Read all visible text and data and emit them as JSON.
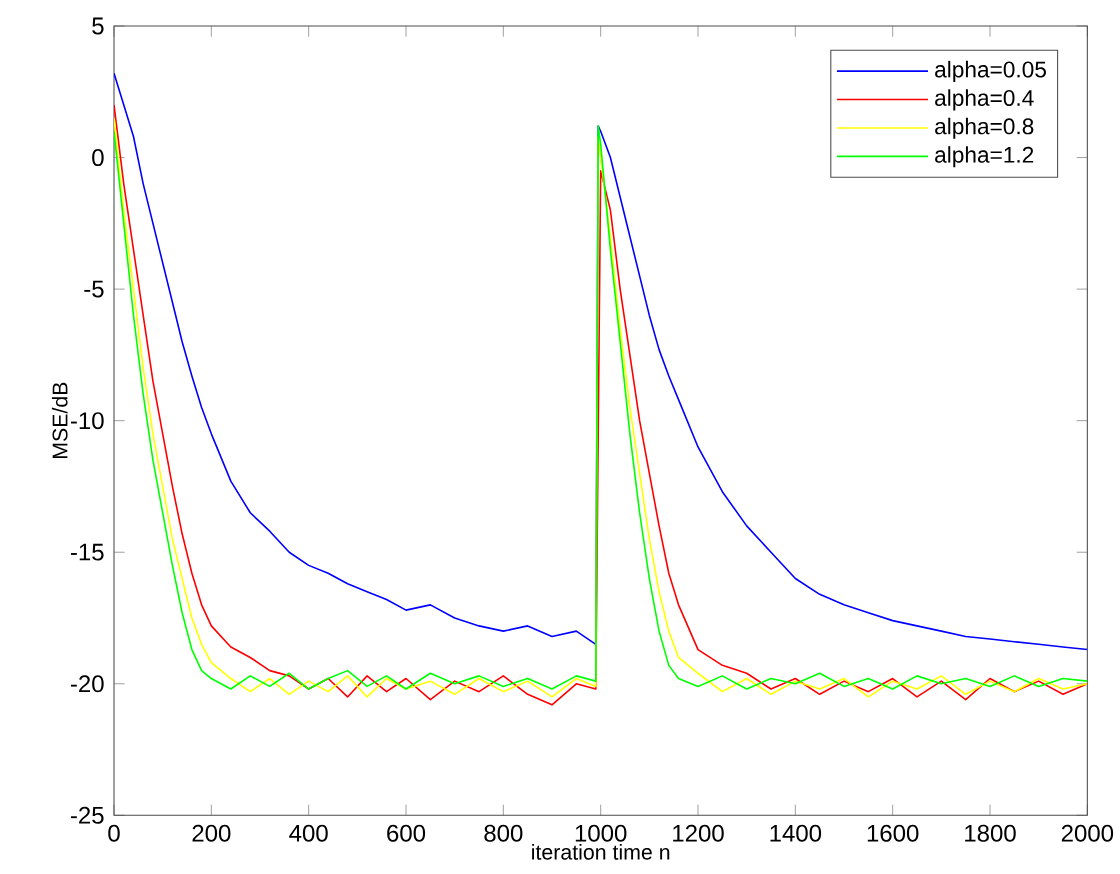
{
  "chart_data": {
    "type": "line",
    "xlabel": "iteration time n",
    "ylabel": "MSE/dB",
    "xlim": [
      0,
      2000
    ],
    "ylim": [
      -25,
      5
    ],
    "xticks": [
      0,
      200,
      400,
      600,
      800,
      1000,
      1200,
      1400,
      1600,
      1800,
      2000
    ],
    "yticks": [
      -25,
      -20,
      -15,
      -10,
      -5,
      0,
      5
    ],
    "grid": false,
    "legend": "top right",
    "x": [
      0,
      20,
      40,
      60,
      80,
      100,
      120,
      140,
      160,
      180,
      200,
      240,
      280,
      320,
      360,
      400,
      440,
      480,
      520,
      560,
      600,
      650,
      700,
      750,
      800,
      850,
      900,
      950,
      990,
      995,
      1000,
      1020,
      1040,
      1060,
      1080,
      1100,
      1120,
      1140,
      1160,
      1200,
      1250,
      1300,
      1350,
      1400,
      1450,
      1500,
      1550,
      1600,
      1650,
      1700,
      1750,
      1800,
      1850,
      1900,
      1950,
      2000
    ],
    "series": [
      {
        "name": "alpha=0.05",
        "color": "#0000ff",
        "values": [
          3.2,
          2,
          0.8,
          -1,
          -2.5,
          -4,
          -5.5,
          -7,
          -8.3,
          -9.5,
          -10.5,
          -12.3,
          -13.5,
          -14.2,
          -15,
          -15.5,
          -15.8,
          -16.2,
          -16.5,
          -16.8,
          -17.2,
          -17,
          -17.5,
          -17.8,
          -18,
          -17.8,
          -18.2,
          -18,
          -18.5,
          1.2,
          1.0,
          0,
          -1.5,
          -3,
          -4.5,
          -6,
          -7.3,
          -8.3,
          -9.2,
          -11,
          -12.7,
          -14,
          -15,
          -16,
          -16.6,
          -17,
          -17.3,
          -17.6,
          -17.8,
          -18,
          -18.2,
          -18.3,
          -18.4,
          -18.5,
          -18.6,
          -18.7
        ]
      },
      {
        "name": "alpha=0.4",
        "color": "#ff0000",
        "values": [
          2,
          -1,
          -3.5,
          -6,
          -8.5,
          -10.5,
          -12.5,
          -14.3,
          -15.8,
          -17,
          -17.8,
          -18.6,
          -19,
          -19.5,
          -19.7,
          -20.2,
          -19.8,
          -20.5,
          -19.7,
          -20.3,
          -19.8,
          -20.6,
          -19.9,
          -20.3,
          -19.7,
          -20.4,
          -20.8,
          -20,
          -20.2,
          null,
          -0.5,
          -2,
          -5,
          -7.5,
          -10,
          -12,
          -14,
          -15.8,
          -17,
          -18.7,
          -19.3,
          -19.6,
          -20.2,
          -19.8,
          -20.4,
          -19.9,
          -20.3,
          -19.8,
          -20.5,
          -19.9,
          -20.6,
          -19.8,
          -20.3,
          -19.9,
          -20.4,
          -20
        ]
      },
      {
        "name": "alpha=0.8",
        "color": "#ffff00",
        "values": [
          1.5,
          -2,
          -5,
          -8,
          -10.5,
          -12.5,
          -14.5,
          -16,
          -17.5,
          -18.5,
          -19.2,
          -19.8,
          -20.3,
          -19.8,
          -20.4,
          -19.9,
          -20.3,
          -19.7,
          -20.5,
          -19.8,
          -20.2,
          -19.9,
          -20.4,
          -19.8,
          -20.3,
          -19.9,
          -20.5,
          -19.8,
          -20.1,
          0.8,
          0,
          -3,
          -6.5,
          -9.5,
          -12,
          -14.5,
          -16.5,
          -18,
          -19,
          -19.6,
          -20.3,
          -19.8,
          -20.4,
          -19.9,
          -20.2,
          -19.8,
          -20.5,
          -19.9,
          -20.2,
          -19.7,
          -20.4,
          -19.9,
          -20.3,
          -19.8,
          -20.2,
          -20
        ]
      },
      {
        "name": "alpha=1.2",
        "color": "#00ff00",
        "values": [
          1,
          -2.5,
          -6,
          -9,
          -11.5,
          -13.5,
          -15.5,
          -17.3,
          -18.7,
          -19.5,
          -19.8,
          -20.2,
          -19.7,
          -20.1,
          -19.6,
          -20.2,
          -19.8,
          -19.5,
          -20.1,
          -19.7,
          -20.2,
          -19.6,
          -20,
          -19.7,
          -20.1,
          -19.8,
          -20.2,
          -19.7,
          -19.9,
          1.2,
          0.5,
          -3.5,
          -7,
          -10.5,
          -13.5,
          -16,
          -18,
          -19.3,
          -19.8,
          -20.1,
          -19.7,
          -20.2,
          -19.8,
          -20,
          -19.6,
          -20.1,
          -19.8,
          -20.2,
          -19.7,
          -20,
          -19.8,
          -20.1,
          -19.7,
          -20.1,
          -19.8,
          -19.9
        ]
      }
    ]
  }
}
